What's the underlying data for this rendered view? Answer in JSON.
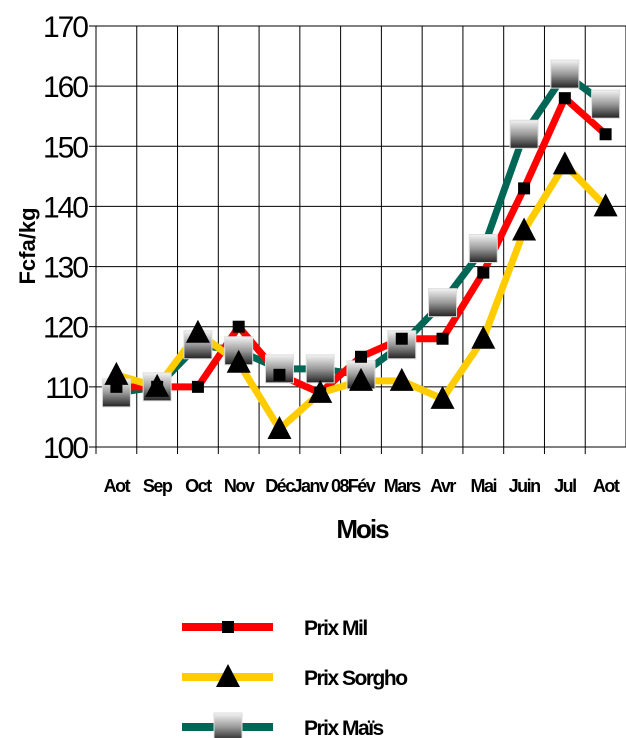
{
  "chart_data": {
    "type": "line",
    "xlabel": "Mois",
    "ylabel": "Fcfa/kg",
    "ylim": [
      100,
      170
    ],
    "yticks": [
      "100",
      "110",
      "120",
      "130",
      "140",
      "150",
      "160",
      "170"
    ],
    "grid": true,
    "legend_position": "bottom",
    "categories": [
      "Aot",
      "Sep",
      "Oct",
      "Nov",
      "Déc",
      "Janv 08",
      "Fév",
      "Mars",
      "Avr",
      "Mai",
      "Juin",
      "Jul",
      "Aot"
    ],
    "series": [
      {
        "name": "Prix Mil",
        "color": "#ff0000",
        "marker": "square",
        "values": [
          110,
          110,
          110,
          120,
          112,
          109,
          115,
          118,
          118,
          129,
          143,
          158,
          152
        ]
      },
      {
        "name": "Prix Sorgho",
        "color": "#ffcc00",
        "marker": "triangle",
        "values": [
          112,
          110,
          119,
          114,
          103,
          109,
          111,
          111,
          108,
          118,
          136,
          147,
          140
        ]
      },
      {
        "name": "Prix Maïs",
        "color": "#006655",
        "marker": "shaded-square",
        "values": [
          109,
          110,
          117,
          116,
          113,
          113,
          112,
          117,
          124,
          133,
          152,
          162,
          157
        ]
      }
    ]
  }
}
